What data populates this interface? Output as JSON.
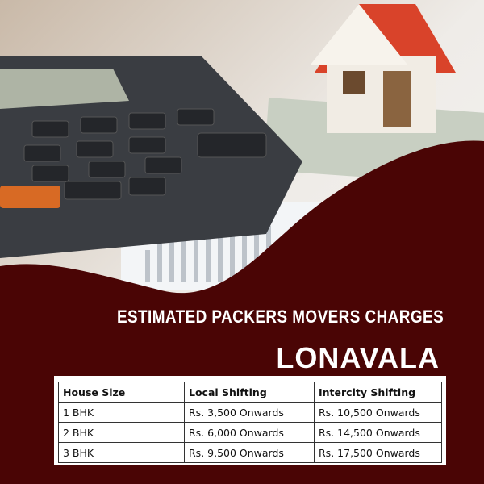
{
  "heading": {
    "title": "ESTIMATED PACKERS MOVERS CHARGES",
    "city": "LONAVALA"
  },
  "colors": {
    "maroon": "#4a0505",
    "text": "#ffffff"
  },
  "table": {
    "headers": [
      "House Size",
      "Local Shifting",
      "Intercity Shifting"
    ],
    "rows": [
      [
        "1 BHK",
        "Rs. 3,500 Onwards",
        "Rs. 10,500 Onwards"
      ],
      [
        "2 BHK",
        "Rs. 6,000 Onwards",
        "Rs. 14,500 Onwards"
      ],
      [
        "3 BHK",
        "Rs. 9,500 Onwards",
        "Rs. 17,500 Onwards"
      ]
    ]
  }
}
